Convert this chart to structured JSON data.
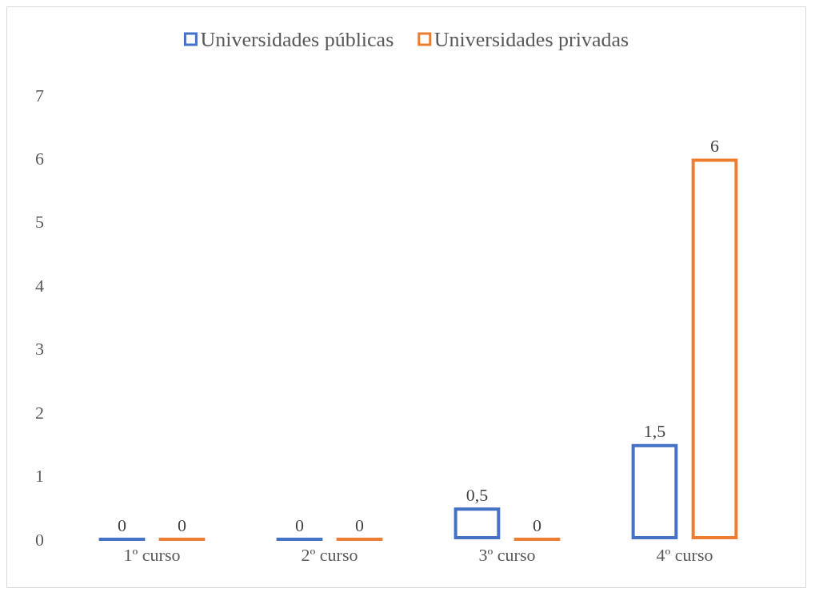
{
  "chart_data": {
    "type": "bar",
    "categories": [
      "1º curso",
      "2º curso",
      "3º curso",
      "4º curso"
    ],
    "series": [
      {
        "name": "Universidades públicas",
        "color": "#4472c4",
        "values": [
          0,
          0,
          0.5,
          1.5
        ],
        "value_labels": [
          "0",
          "0",
          "0,5",
          "1,5"
        ]
      },
      {
        "name": "Universidades privadas",
        "color": "#ed7d31",
        "values": [
          0,
          0,
          0,
          6
        ],
        "value_labels": [
          "0",
          "0",
          "0",
          "6"
        ]
      }
    ],
    "ylim": [
      0,
      7
    ],
    "yticks": [
      0,
      1,
      2,
      3,
      4,
      5,
      6,
      7
    ],
    "grid": false,
    "legend": "top"
  }
}
